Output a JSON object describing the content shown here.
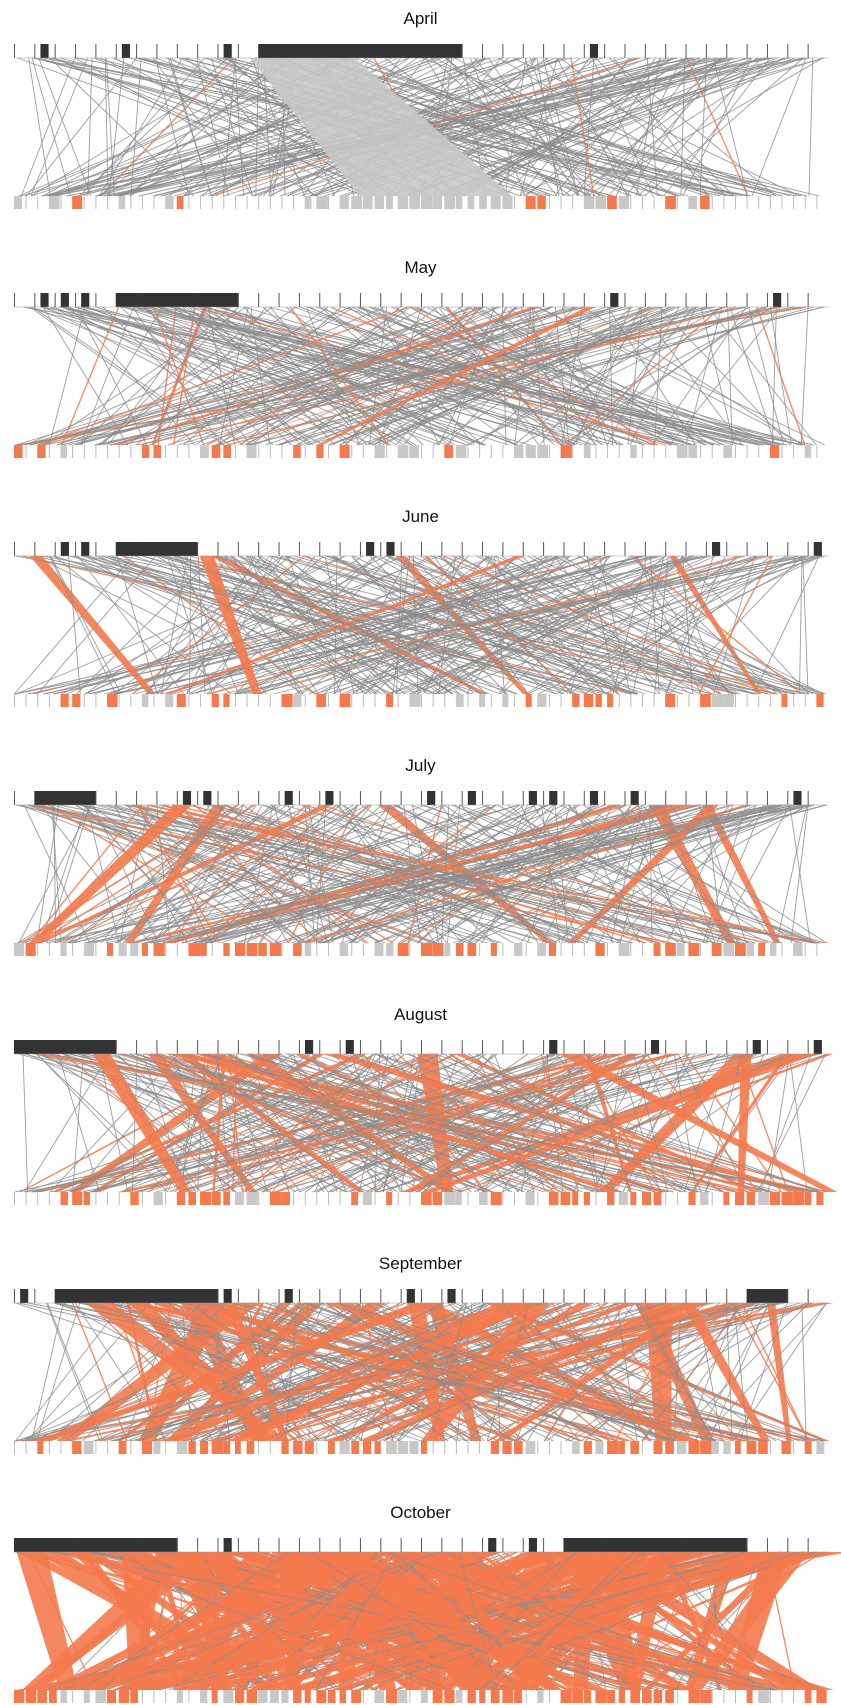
{
  "panels": [
    {
      "title": "April",
      "coarse": [
        0,
        0,
        0,
        0,
        0,
        0,
        0,
        0,
        0,
        0,
        0,
        0,
        1,
        1,
        1,
        1,
        1,
        1,
        1,
        1,
        1,
        1,
        0,
        0,
        0,
        0,
        0,
        0,
        0,
        0,
        0,
        0,
        0,
        0,
        0,
        0,
        0,
        0,
        0,
        0
      ],
      "fine": [
        0,
        0,
        0,
        0,
        0,
        0,
        0,
        0,
        0,
        0,
        0,
        0,
        0,
        0,
        0,
        0,
        0,
        0,
        0,
        0,
        0,
        0,
        0,
        0,
        0,
        0,
        0,
        0,
        1,
        1,
        1,
        1,
        1,
        1,
        1,
        1,
        1,
        1,
        1,
        1,
        1,
        1,
        1,
        0,
        0,
        0,
        0,
        0,
        0,
        0,
        0,
        0,
        0,
        0,
        0,
        0,
        0,
        0,
        0,
        0,
        0,
        0,
        0,
        0,
        0,
        0,
        0,
        0,
        0,
        0
      ]
    },
    {
      "title": "May",
      "coarse": [
        0,
        0,
        0,
        0,
        0,
        1,
        1,
        1,
        1,
        1,
        1,
        0,
        0,
        0,
        0,
        0,
        0,
        0,
        0,
        0,
        0,
        0,
        0,
        0,
        0,
        0,
        0,
        0,
        0,
        0,
        0,
        0,
        0,
        0,
        0,
        0,
        0,
        0,
        0,
        0
      ],
      "fine": [
        0,
        0,
        0,
        0,
        0,
        0,
        0,
        0,
        0,
        0,
        0,
        0,
        0,
        0,
        0,
        0,
        0,
        0,
        0,
        0,
        0,
        0,
        0,
        0,
        0,
        0,
        0,
        0,
        0,
        0,
        0,
        0,
        0,
        0,
        0,
        0,
        0,
        0,
        0,
        0,
        0,
        0,
        0,
        0,
        0,
        0,
        0,
        0,
        0,
        0,
        0,
        0,
        0,
        0,
        0,
        0,
        0,
        0,
        0,
        0,
        0,
        0,
        0,
        0,
        0,
        0,
        0,
        0,
        0,
        0
      ]
    },
    {
      "title": "June",
      "coarse": [
        0,
        0,
        0,
        0,
        0,
        1,
        1,
        1,
        1,
        0,
        0,
        0,
        0,
        0,
        0,
        0,
        0,
        0,
        0,
        0,
        0,
        0,
        0,
        0,
        0,
        0,
        0,
        0,
        0,
        0,
        0,
        0,
        0,
        0,
        0,
        0,
        0,
        0,
        0,
        0
      ],
      "fine": [
        0,
        0,
        0,
        0,
        0,
        0,
        0,
        0,
        0,
        0,
        0,
        0,
        0,
        0,
        0,
        0,
        0,
        0,
        0,
        0,
        0,
        0,
        0,
        0,
        0,
        0,
        0,
        0,
        0,
        0,
        0,
        0,
        0,
        0,
        0,
        0,
        0,
        0,
        0,
        0,
        0,
        0,
        0,
        0,
        0,
        0,
        0,
        0,
        0,
        0,
        0,
        0,
        0,
        0,
        0,
        0,
        0,
        0,
        0,
        0,
        0,
        0,
        0,
        0,
        0,
        0,
        0,
        0,
        0,
        0
      ]
    },
    {
      "title": "July",
      "coarse": [
        0,
        1,
        1,
        1,
        0,
        0,
        0,
        0,
        0,
        0,
        0,
        0,
        0,
        0,
        0,
        0,
        0,
        0,
        0,
        0,
        0,
        0,
        0,
        0,
        0,
        0,
        0,
        0,
        0,
        0,
        0,
        0,
        0,
        0,
        0,
        0,
        0,
        0,
        0,
        0
      ],
      "fine": [
        0,
        0,
        0,
        0,
        0,
        0,
        0,
        0,
        0,
        0,
        0,
        0,
        0,
        0,
        0,
        0,
        0,
        0,
        0,
        0,
        0,
        0,
        0,
        0,
        0,
        0,
        0,
        0,
        0,
        0,
        0,
        0,
        0,
        0,
        0,
        0,
        0,
        0,
        0,
        0,
        0,
        0,
        0,
        0,
        0,
        0,
        0,
        0,
        0,
        0,
        0,
        0,
        0,
        0,
        0,
        0,
        0,
        0,
        0,
        0,
        0,
        0,
        0,
        0,
        0,
        0,
        0,
        0,
        0,
        0
      ]
    },
    {
      "title": "August",
      "coarse": [
        1,
        1,
        1,
        1,
        1,
        0,
        0,
        0,
        0,
        0,
        0,
        0,
        0,
        0,
        0,
        0,
        0,
        0,
        0,
        0,
        0,
        0,
        0,
        0,
        0,
        0,
        0,
        0,
        0,
        0,
        0,
        0,
        0,
        0,
        0,
        0,
        0,
        0,
        0,
        0
      ],
      "fine": [
        0,
        0,
        0,
        0,
        0,
        0,
        0,
        0,
        0,
        0,
        0,
        0,
        0,
        0,
        0,
        0,
        0,
        0,
        0,
        0,
        0,
        0,
        0,
        0,
        0,
        0,
        0,
        0,
        0,
        0,
        0,
        0,
        0,
        0,
        0,
        0,
        0,
        0,
        0,
        0,
        0,
        0,
        0,
        0,
        0,
        0,
        0,
        0,
        0,
        0,
        0,
        0,
        0,
        0,
        0,
        0,
        0,
        0,
        0,
        0,
        0,
        0,
        0,
        0,
        0,
        0,
        0,
        0,
        0,
        0
      ]
    },
    {
      "title": "September",
      "coarse": [
        0,
        0,
        1,
        1,
        1,
        1,
        1,
        1,
        1,
        1,
        0,
        0,
        0,
        0,
        0,
        0,
        0,
        0,
        0,
        0,
        0,
        0,
        0,
        0,
        0,
        0,
        0,
        0,
        0,
        0,
        0,
        0,
        0,
        0,
        0,
        0,
        1,
        1,
        0,
        0
      ],
      "fine": [
        0,
        0,
        0,
        0,
        0,
        0,
        0,
        0,
        0,
        0,
        0,
        0,
        0,
        0,
        0,
        0,
        0,
        0,
        0,
        0,
        0,
        0,
        0,
        0,
        0,
        0,
        0,
        0,
        0,
        0,
        0,
        0,
        0,
        0,
        0,
        0,
        0,
        0,
        0,
        0,
        0,
        0,
        0,
        0,
        0,
        0,
        0,
        0,
        0,
        0,
        0,
        0,
        0,
        0,
        0,
        0,
        0,
        0,
        0,
        0,
        0,
        0,
        0,
        0,
        0,
        0,
        0,
        0,
        0,
        0
      ]
    },
    {
      "title": "October",
      "coarse": [
        1,
        1,
        1,
        1,
        1,
        1,
        1,
        1,
        0,
        0,
        0,
        0,
        0,
        0,
        0,
        0,
        0,
        0,
        0,
        0,
        0,
        0,
        0,
        0,
        0,
        0,
        0,
        1,
        1,
        1,
        1,
        1,
        1,
        1,
        1,
        1,
        0,
        0,
        0,
        0
      ],
      "fine": [
        0,
        0,
        0,
        0,
        0,
        0,
        0,
        0,
        0,
        0,
        0,
        0,
        0,
        0,
        0,
        0,
        0,
        0,
        0,
        0,
        0,
        0,
        0,
        0,
        0,
        0,
        0,
        0,
        0,
        0,
        0,
        0,
        0,
        0,
        0,
        0,
        0,
        0,
        0,
        0,
        0,
        0,
        0,
        0,
        0,
        0,
        0,
        0,
        0,
        0,
        0,
        0,
        0,
        0,
        0,
        0,
        0,
        0,
        0,
        0,
        0,
        0,
        0,
        0,
        0,
        0,
        0,
        0,
        0,
        0
      ]
    }
  ],
  "colors": {
    "node_dark": "#333333",
    "node_outline": "#555555",
    "node_orange": "#f47a4e",
    "node_gray": "#c8c8c8",
    "link_gray": "#8c8c8c",
    "link_orange": "#f47a4e",
    "link_lightgray": "#c8c8c8"
  }
}
